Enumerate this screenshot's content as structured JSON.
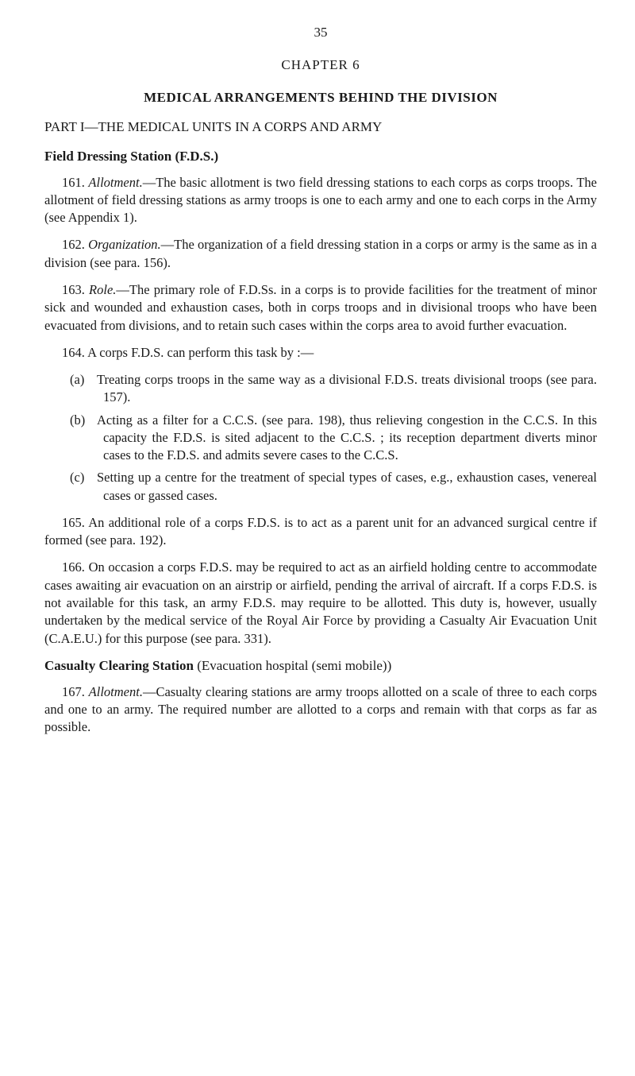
{
  "page_number": "35",
  "chapter_label": "CHAPTER 6",
  "title_main": "MEDICAL ARRANGEMENTS BEHIND THE DIVISION",
  "title_part": "PART I—THE MEDICAL UNITS IN A CORPS AND ARMY",
  "fds": {
    "heading": "Field Dressing Station (F.D.S.)",
    "p161_num": "161.",
    "p161_term": "Allotment.",
    "p161_body": "—The basic allotment is two field dressing stations to each corps as corps troops. The allotment of field dressing stations as army troops is one to each army and one to each corps in the Army (see Appendix 1).",
    "p162_num": "162.",
    "p162_term": "Organization.",
    "p162_body": "—The organization of a field dressing station in a corps or army is the same as in a division (see para. 156).",
    "p163_num": "163.",
    "p163_term": "Role.",
    "p163_body": "—The primary role of F.D.Ss. in a corps is to provide facilities for the treatment of minor sick and wounded and exhaustion cases, both in corps troops and in divisional troops who have been evacuated from divisions, and to retain such cases within the corps area to avoid further evacuation.",
    "p164_intro": "164. A corps F.D.S. can perform this task by :—",
    "p164_items": [
      {
        "marker": "(a)",
        "text": "Treating corps troops in the same way as a divisional F.D.S. treats divisional troops (see para. 157)."
      },
      {
        "marker": "(b)",
        "text": "Acting as a filter for a C.C.S. (see para. 198), thus relieving congestion in the C.C.S. In this capacity the F.D.S. is sited adjacent to the C.C.S. ; its reception department diverts minor cases to the F.D.S. and admits severe cases to the C.C.S."
      },
      {
        "marker": "(c)",
        "text": "Setting up a centre for the treatment of special types of cases, e.g., exhaustion cases, venereal cases or gassed cases."
      }
    ],
    "p165": "165. An additional role of a corps F.D.S. is to act as a parent unit for an advanced surgical centre if formed (see para. 192).",
    "p166": "166. On occasion a corps F.D.S. may be required to act as an airfield holding centre to accommodate cases awaiting air evacuation on an airstrip or airfield, pending the arrival of aircraft. If a corps F.D.S. is not available for this task, an army F.D.S. may require to be allotted. This duty is, however, usually undertaken by the medical service of the Royal Air Force by providing a Casualty Air Evacuation Unit (C.A.E.U.) for this purpose (see para. 331)."
  },
  "ccs": {
    "heading_bold": "Casualty Clearing Station",
    "heading_paren": "(Evacuation hospital (semi mobile))",
    "p167_num": "167.",
    "p167_term": "Allotment.",
    "p167_body": "—Casualty clearing stations are army troops allotted on a scale of three to each corps and one to an army. The required number are allotted to a corps and remain with that corps as far as possible."
  }
}
